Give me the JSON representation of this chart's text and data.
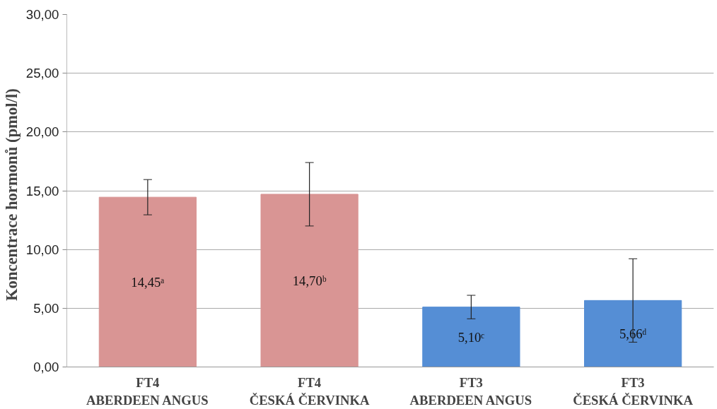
{
  "chart_data": {
    "type": "bar",
    "ylabel": "Koncentrace  hormonů  (pmol/l)",
    "categories": [
      "FT4\nABERDEEN ANGUS",
      "FT4\nČESKÁ ČERVINKA",
      "FT3\nABERDEEN ANGUS",
      "FT3\nČESKÁ ČERVINKA"
    ],
    "values": [
      14.45,
      14.7,
      5.1,
      5.66
    ],
    "colors": [
      "#d99594",
      "#d99594",
      "#558ed5",
      "#558ed5"
    ],
    "errors": [
      1.5,
      2.7,
      1.0,
      3.55
    ],
    "value_labels": [
      "14,45ᵃ",
      "14,70ᵇ",
      "5,10ᶜ",
      "5,66ᵈ"
    ],
    "ylim": [
      0,
      30
    ],
    "yticks": [
      {
        "value": 0,
        "label": "0,00"
      },
      {
        "value": 5,
        "label": "5,00"
      },
      {
        "value": 10,
        "label": "10,00"
      },
      {
        "value": 15,
        "label": "15,00"
      },
      {
        "value": 20,
        "label": "20,00"
      },
      {
        "value": 25,
        "label": "25,00"
      },
      {
        "value": 30,
        "label": "30,00"
      }
    ],
    "grid": "y"
  }
}
